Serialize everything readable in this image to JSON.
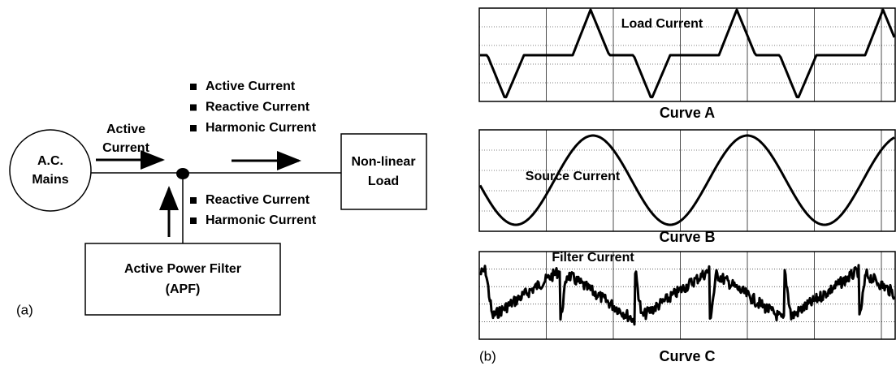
{
  "diagram_a": {
    "source": {
      "line1": "A.C.",
      "line2": "Mains"
    },
    "input_label": {
      "line1": "Active",
      "line2": "Current"
    },
    "load_components": [
      "Active Current",
      "Reactive Current",
      "Harmonic Current"
    ],
    "filter_components": [
      "Reactive Current",
      "Harmonic Current"
    ],
    "load": {
      "line1": "Non-linear",
      "line2": "Load"
    },
    "filter": {
      "line1": "Active Power Filter",
      "line2": "(APF)"
    },
    "label": "(a)"
  },
  "diagram_b": {
    "label": "(b)",
    "panels": [
      {
        "signal": "Load Current",
        "caption": "Curve A"
      },
      {
        "signal": "Source Current",
        "caption": "Curve B"
      },
      {
        "signal": "Filter Current",
        "caption": "Curve C"
      }
    ]
  }
}
